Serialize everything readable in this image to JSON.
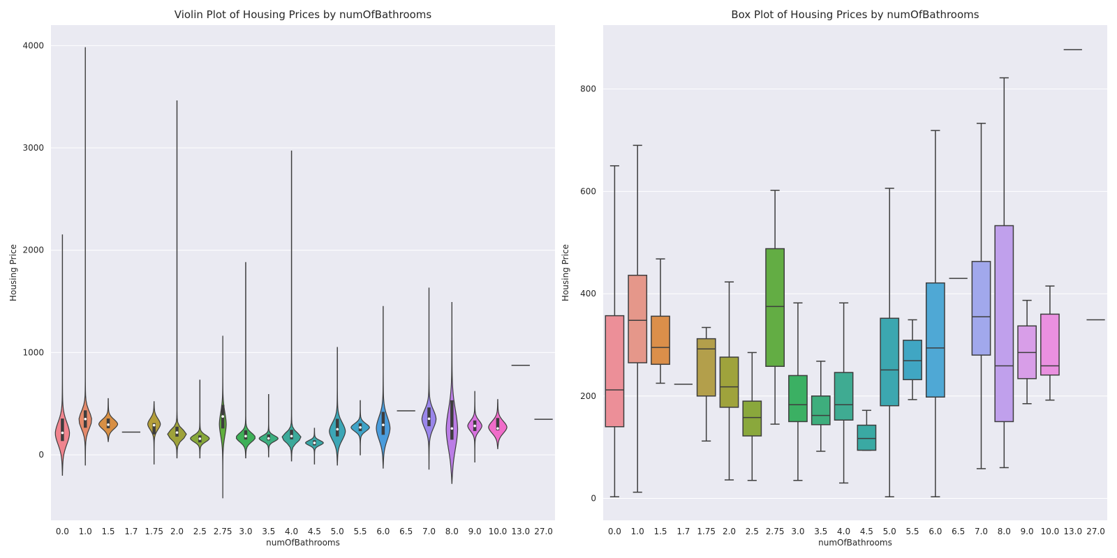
{
  "chart_data": [
    {
      "type": "violin",
      "title": "Violin Plot of Housing Prices by numOfBathrooms",
      "xlabel": "numOfBathrooms",
      "ylabel": "Housing Price",
      "ylim": [
        -640,
        4200
      ],
      "yticks": [
        0,
        1000,
        2000,
        3000,
        4000
      ],
      "grid": true,
      "categories": [
        "0.0",
        "1.0",
        "1.5",
        "1.7",
        "1.75",
        "2.0",
        "2.5",
        "2.75",
        "3.0",
        "3.5",
        "4.0",
        "4.5",
        "5.0",
        "5.5",
        "6.0",
        "6.5",
        "7.0",
        "8.0",
        "9.0",
        "10.0",
        "13.0",
        "27.0"
      ],
      "colors": [
        "#f0848e",
        "#e58a6b",
        "#d88f44",
        "#c99a3a",
        "#b49e3a",
        "#9ea23a",
        "#86a73a",
        "#5fae3d",
        "#3eb058",
        "#3caf80",
        "#3ba99a",
        "#3aa7a7",
        "#3ca6b6",
        "#3ea3c7",
        "#4a9cdc",
        "#6d8ee8",
        "#9a86eb",
        "#bb7de6",
        "#d872df",
        "#f06cc9",
        "#f07aab",
        "#f2808f"
      ],
      "violins": [
        {
          "min": -200,
          "max": 2150,
          "median": 215,
          "q1": 135,
          "q3": 355,
          "mode": 210,
          "width": 0.62
        },
        {
          "min": -100,
          "max": 3980,
          "median": 350,
          "q1": 265,
          "q3": 435,
          "mode": 340,
          "width": 0.55
        },
        {
          "min": 130,
          "max": 550,
          "median": 295,
          "q1": 260,
          "q3": 355,
          "mode": 300,
          "width": 0.82
        },
        {
          "min": 222,
          "max": 222,
          "median": 222,
          "q1": 222,
          "q3": 222,
          "mode": 222,
          "width": 0.8
        },
        {
          "min": -90,
          "max": 520,
          "median": 290,
          "q1": 200,
          "q3": 310,
          "mode": 300,
          "width": 0.55
        },
        {
          "min": -30,
          "max": 3460,
          "median": 218,
          "q1": 178,
          "q3": 275,
          "mode": 200,
          "width": 0.82
        },
        {
          "min": -30,
          "max": 730,
          "median": 158,
          "q1": 122,
          "q3": 190,
          "mode": 160,
          "width": 0.82
        },
        {
          "min": -420,
          "max": 1160,
          "median": 375,
          "q1": 258,
          "q3": 488,
          "mode": 300,
          "width": 0.3
        },
        {
          "min": -30,
          "max": 1880,
          "median": 183,
          "q1": 150,
          "q3": 240,
          "mode": 170,
          "width": 0.82
        },
        {
          "min": -20,
          "max": 590,
          "median": 161,
          "q1": 142,
          "q3": 200,
          "mode": 160,
          "width": 0.82
        },
        {
          "min": -60,
          "max": 2970,
          "median": 183,
          "q1": 152,
          "q3": 245,
          "mode": 170,
          "width": 0.82
        },
        {
          "min": -90,
          "max": 260,
          "median": 117,
          "q1": 93,
          "q3": 142,
          "mode": 117,
          "width": 0.78
        },
        {
          "min": -100,
          "max": 1050,
          "median": 250,
          "q1": 180,
          "q3": 352,
          "mode": 230,
          "width": 0.7
        },
        {
          "min": 0,
          "max": 530,
          "median": 268,
          "q1": 232,
          "q3": 308,
          "mode": 268,
          "width": 0.8
        },
        {
          "min": -130,
          "max": 1450,
          "median": 293,
          "q1": 196,
          "q3": 420,
          "mode": 260,
          "width": 0.6
        },
        {
          "min": 430,
          "max": 430,
          "median": 430,
          "q1": 430,
          "q3": 430,
          "mode": 430,
          "width": 0.8
        },
        {
          "min": -140,
          "max": 1630,
          "median": 353,
          "q1": 280,
          "q3": 463,
          "mode": 350,
          "width": 0.62
        },
        {
          "min": -280,
          "max": 1490,
          "median": 258,
          "q1": 148,
          "q3": 533,
          "mode": 250,
          "width": 0.5
        },
        {
          "min": -70,
          "max": 620,
          "median": 283,
          "q1": 233,
          "q3": 336,
          "mode": 283,
          "width": 0.62
        },
        {
          "min": 60,
          "max": 540,
          "median": 258,
          "q1": 240,
          "q3": 360,
          "mode": 270,
          "width": 0.8
        },
        {
          "min": 875,
          "max": 875,
          "median": 875,
          "q1": 875,
          "q3": 875,
          "mode": 875,
          "width": 0.8
        },
        {
          "min": 348,
          "max": 348,
          "median": 348,
          "q1": 348,
          "q3": 348,
          "mode": 348,
          "width": 0.8
        }
      ]
    },
    {
      "type": "box",
      "title": "Box Plot of Housing Prices by numOfBathrooms",
      "xlabel": "numOfBathrooms",
      "ylabel": "Housing Price",
      "ylim": [
        -43,
        925
      ],
      "yticks": [
        0,
        200,
        400,
        600,
        800
      ],
      "grid": true,
      "categories": [
        "0.0",
        "1.0",
        "1.5",
        "1.7",
        "1.75",
        "2.0",
        "2.5",
        "2.75",
        "3.0",
        "3.5",
        "4.0",
        "4.5",
        "5.0",
        "5.5",
        "6.0",
        "6.5",
        "7.0",
        "8.0",
        "9.0",
        "10.0",
        "13.0",
        "27.0"
      ],
      "colors": [
        "#ec8f98",
        "#e5978a",
        "#db8f4a",
        "#c8a03f",
        "#b39f4b",
        "#9fa33c",
        "#8aa83c",
        "#63ad44",
        "#3bb063",
        "#3eae7d",
        "#3fab92",
        "#3aa9a3",
        "#3ca7b0",
        "#40a6c3",
        "#4fa8d5",
        "#6f9ee6",
        "#a1a8ec",
        "#c0a0ec",
        "#d89ee8",
        "#ea90e0",
        "#f089bf",
        "#f28aa0"
      ],
      "boxes": [
        {
          "whislo": 3,
          "q1": 140,
          "median": 212,
          "q3": 357,
          "whishi": 650
        },
        {
          "whislo": 12,
          "q1": 265,
          "median": 348,
          "q3": 436,
          "whishi": 690
        },
        {
          "whislo": 225,
          "q1": 262,
          "median": 295,
          "q3": 356,
          "whishi": 468
        },
        {
          "whislo": 223,
          "q1": 223,
          "median": 223,
          "q3": 223,
          "whishi": 223
        },
        {
          "whislo": 112,
          "q1": 200,
          "median": 292,
          "q3": 312,
          "whishi": 334
        },
        {
          "whislo": 36,
          "q1": 178,
          "median": 218,
          "q3": 276,
          "whishi": 423
        },
        {
          "whislo": 35,
          "q1": 122,
          "median": 158,
          "q3": 190,
          "whishi": 285
        },
        {
          "whislo": 145,
          "q1": 258,
          "median": 375,
          "q3": 488,
          "whishi": 602
        },
        {
          "whislo": 35,
          "q1": 150,
          "median": 183,
          "q3": 240,
          "whishi": 382
        },
        {
          "whislo": 92,
          "q1": 144,
          "median": 162,
          "q3": 200,
          "whishi": 268
        },
        {
          "whislo": 30,
          "q1": 153,
          "median": 183,
          "q3": 246,
          "whishi": 382
        },
        {
          "whislo": 94,
          "q1": 94,
          "median": 117,
          "q3": 143,
          "whishi": 172
        },
        {
          "whislo": 3,
          "q1": 181,
          "median": 251,
          "q3": 352,
          "whishi": 606
        },
        {
          "whislo": 193,
          "q1": 232,
          "median": 269,
          "q3": 309,
          "whishi": 349
        },
        {
          "whislo": 3,
          "q1": 198,
          "median": 294,
          "q3": 421,
          "whishi": 719
        },
        {
          "whislo": 430,
          "q1": 430,
          "median": 430,
          "q3": 430,
          "whishi": 430
        },
        {
          "whislo": 58,
          "q1": 280,
          "median": 355,
          "q3": 463,
          "whishi": 733
        },
        {
          "whislo": 60,
          "q1": 150,
          "median": 259,
          "q3": 533,
          "whishi": 822
        },
        {
          "whislo": 185,
          "q1": 234,
          "median": 285,
          "q3": 337,
          "whishi": 387
        },
        {
          "whislo": 192,
          "q1": 241,
          "median": 259,
          "q3": 360,
          "whishi": 415
        },
        {
          "whislo": 877,
          "q1": 877,
          "median": 877,
          "q3": 877,
          "whishi": 877
        },
        {
          "whislo": 349,
          "q1": 349,
          "median": 349,
          "q3": 349,
          "whishi": 349
        }
      ]
    }
  ]
}
